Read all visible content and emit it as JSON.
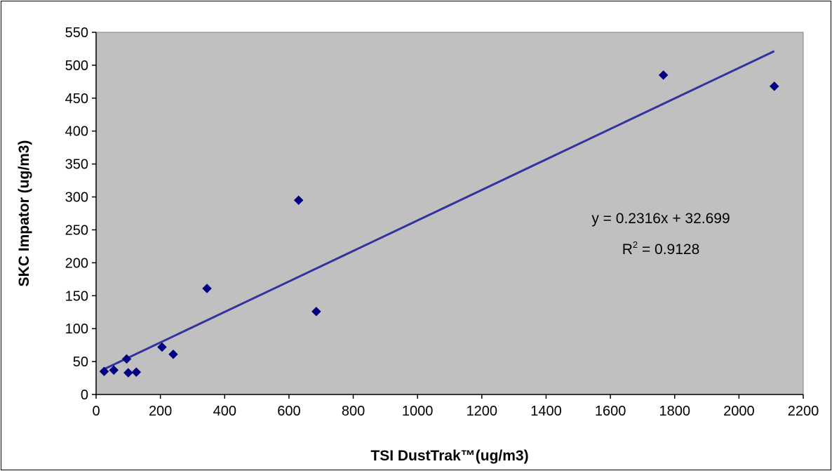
{
  "chart_data": {
    "type": "scatter",
    "xlabel": "TSI DustTrak™(ug/m3)",
    "ylabel": "SKC Impator (ug/m3)",
    "xlim": [
      0,
      2200
    ],
    "ylim": [
      0,
      550
    ],
    "x_ticks": [
      0,
      200,
      400,
      600,
      800,
      1000,
      1200,
      1400,
      1600,
      1800,
      2000,
      2200
    ],
    "y_ticks": [
      0,
      50,
      100,
      150,
      200,
      250,
      300,
      350,
      400,
      450,
      500,
      550
    ],
    "x_tick_labels": [
      "0",
      "200",
      "400",
      "600",
      "800",
      "1000",
      "1200",
      "1400",
      "1600",
      "1800",
      "2000",
      "2200"
    ],
    "y_tick_labels": [
      "0",
      "50",
      "100",
      "150",
      "200",
      "250",
      "300",
      "350",
      "400",
      "450",
      "500",
      "550"
    ],
    "grid": false,
    "legend": "none",
    "series": [
      {
        "points": [
          {
            "x": 25,
            "y": 35
          },
          {
            "x": 55,
            "y": 37
          },
          {
            "x": 95,
            "y": 54
          },
          {
            "x": 100,
            "y": 33
          },
          {
            "x": 125,
            "y": 34
          },
          {
            "x": 205,
            "y": 72
          },
          {
            "x": 240,
            "y": 61
          },
          {
            "x": 345,
            "y": 161
          },
          {
            "x": 630,
            "y": 295
          },
          {
            "x": 685,
            "y": 126
          },
          {
            "x": 1765,
            "y": 485
          },
          {
            "x": 2110,
            "y": 468
          }
        ],
        "marker": "diamond",
        "color": "#000080"
      }
    ],
    "trendline": {
      "slope": 0.2316,
      "intercept": 32.699,
      "x_range": [
        25,
        2110
      ],
      "color": "#3333A0",
      "equation": "y = 0.2316x + 32.699",
      "r2_prefix": "R",
      "r2_superscript": "2",
      "r2_value": " = 0.9128"
    },
    "colors": {
      "plot_background": "#C0C0C0",
      "frame": "#000000",
      "axis": "#000000"
    }
  }
}
